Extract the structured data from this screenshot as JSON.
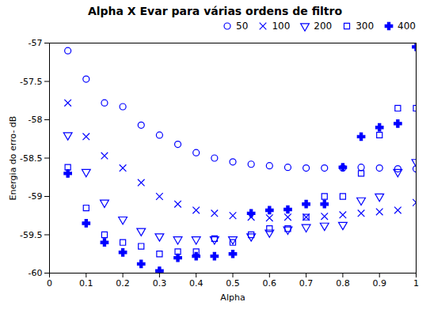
{
  "chart_data": {
    "type": "scatter",
    "title": "Alpha X Evar para várias ordens de filtro",
    "xlabel": "Alpha",
    "ylabel": "Energia do erro- dB",
    "x": [
      0.05,
      0.1,
      0.15,
      0.2,
      0.25,
      0.3,
      0.35,
      0.4,
      0.45,
      0.5,
      0.55,
      0.6,
      0.65,
      0.7,
      0.75,
      0.8,
      0.85,
      0.9,
      0.95,
      1.0
    ],
    "series": [
      {
        "name": "50",
        "color": "blue",
        "marker": "circle",
        "values": [
          -57.1,
          -57.47,
          -57.78,
          -57.83,
          -58.07,
          -58.2,
          -58.32,
          -58.43,
          -58.5,
          -58.55,
          -58.58,
          -58.6,
          -58.62,
          -58.63,
          -58.63,
          -58.63,
          -58.62,
          -58.63,
          -58.64,
          -58.64
        ]
      },
      {
        "name": "100",
        "color": "blue",
        "marker": "x",
        "values": [
          -57.78,
          -58.22,
          -58.47,
          -58.63,
          -58.82,
          -59.0,
          -59.1,
          -59.18,
          -59.22,
          -59.25,
          -59.27,
          -59.28,
          -59.27,
          -59.27,
          -59.26,
          -59.24,
          -59.22,
          -59.2,
          -59.18,
          -59.08
        ]
      },
      {
        "name": "200",
        "color": "blue",
        "marker": "triangle-down",
        "values": [
          -58.2,
          -58.68,
          -59.08,
          -59.3,
          -59.45,
          -59.52,
          -59.56,
          -59.56,
          -59.56,
          -59.56,
          -59.52,
          -59.47,
          -59.43,
          -59.4,
          -59.38,
          -59.37,
          -59.05,
          -59.0,
          -58.68,
          -58.55
        ]
      },
      {
        "name": "300",
        "color": "blue",
        "marker": "square",
        "values": [
          -58.62,
          -59.15,
          -59.5,
          -59.6,
          -59.65,
          -59.75,
          -59.72,
          -59.72,
          -59.55,
          -59.6,
          -59.5,
          -59.42,
          -59.42,
          -59.27,
          -59.0,
          -59.0,
          -58.7,
          -58.2,
          -57.85,
          -57.85
        ]
      },
      {
        "name": "400",
        "color": "blue",
        "marker": "plus",
        "values": [
          -58.7,
          -59.35,
          -59.6,
          -59.73,
          -59.88,
          -59.97,
          -59.8,
          -59.78,
          -59.78,
          -59.75,
          -59.22,
          -59.18,
          -59.17,
          -59.1,
          -59.1,
          -58.62,
          -58.22,
          -58.1,
          -58.05,
          -57.05
        ]
      }
    ],
    "xlim": [
      0,
      1.0
    ],
    "ylim": [
      -60,
      -57
    ],
    "xticks": [
      0,
      0.1,
      0.2,
      0.3,
      0.4,
      0.5,
      0.6,
      0.7,
      0.8,
      0.9,
      1.0
    ],
    "yticks": [
      -60,
      -59.5,
      -59,
      -58.5,
      -58,
      -57.5,
      -57
    ],
    "grid": false,
    "legend": "upper right"
  }
}
